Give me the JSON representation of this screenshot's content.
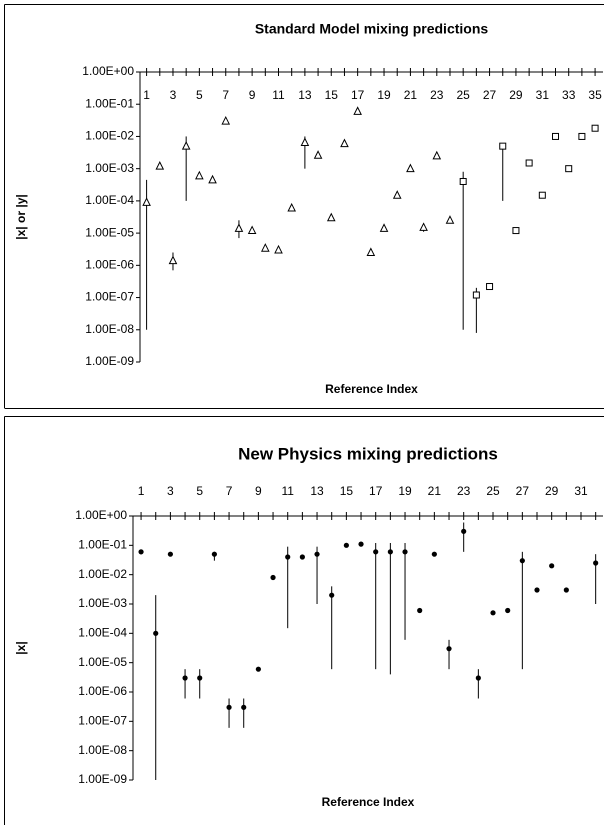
{
  "chart_data": [
    {
      "type": "scatter",
      "title": "Standard Model mixing predictions",
      "x_label": "Reference Index",
      "y_label": "|x| or |y|",
      "log_y": true,
      "xaxis_position": "top",
      "xtick_label_side": "below",
      "xlim": [
        0.5,
        35.6
      ],
      "xticks": [
        1,
        3,
        5,
        7,
        9,
        11,
        13,
        15,
        17,
        19,
        21,
        23,
        25,
        27,
        29,
        31,
        33,
        35
      ],
      "xminorticks": [
        2,
        4,
        6,
        8,
        10,
        12,
        14,
        16,
        18,
        20,
        22,
        24,
        26,
        28,
        30,
        32,
        34
      ],
      "ylim": [
        1e-09,
        1
      ],
      "yticks": [
        {
          "value": 1,
          "label": "1.00E+00"
        },
        {
          "value": 0.1,
          "label": "1.00E-01"
        },
        {
          "value": 0.01,
          "label": "1.00E-02"
        },
        {
          "value": 0.001,
          "label": "1.00E-03"
        },
        {
          "value": 0.0001,
          "label": "1.00E-04"
        },
        {
          "value": 1e-05,
          "label": "1.00E-05"
        },
        {
          "value": 1e-06,
          "label": "1.00E-06"
        },
        {
          "value": 1e-07,
          "label": "1.00E-07"
        },
        {
          "value": 1e-08,
          "label": "1.00E-08"
        },
        {
          "value": 1e-09,
          "label": "1.00E-09"
        }
      ],
      "series": [
        {
          "marker": "triangle",
          "color": "#000000",
          "x": [
            1,
            2,
            3,
            4,
            5,
            6,
            7,
            8,
            9,
            10,
            11,
            12,
            13,
            14,
            15,
            16,
            17,
            18,
            19,
            20,
            21,
            22,
            23,
            24
          ],
          "values": [
            9e-05,
            0.0012,
            1.4e-06,
            0.005,
            0.0006,
            0.00045,
            0.03,
            1.4e-05,
            1.2e-05,
            3.4e-06,
            3e-06,
            6e-05,
            0.0065,
            0.0026,
            3e-05,
            0.006,
            0.06,
            2.5e-06,
            1.4e-05,
            0.00015,
            0.001,
            1.5e-05,
            0.0025,
            2.5e-05
          ],
          "errors": [
            [
              1e-08,
              0.00045
            ],
            null,
            [
              7e-07,
              2.5e-06
            ],
            [
              0.0001,
              0.01
            ],
            null,
            null,
            null,
            [
              7e-06,
              2.5e-05
            ],
            null,
            null,
            null,
            null,
            [
              0.001,
              0.01
            ],
            null,
            null,
            null,
            null,
            null,
            null,
            null,
            null,
            [
              1.1e-05,
              2e-05
            ],
            null,
            null
          ]
        },
        {
          "marker": "square",
          "color": "#000000",
          "x": [
            25,
            26,
            27,
            28,
            29,
            30,
            31,
            32,
            33,
            34,
            35
          ],
          "values": [
            0.0004,
            1.2e-07,
            2.2e-07,
            0.005,
            1.2e-05,
            0.0015,
            0.00015,
            0.01,
            0.001,
            0.01,
            0.018
          ],
          "errors": [
            [
              1e-08,
              0.0008
            ],
            [
              8e-09,
              2e-07
            ],
            null,
            [
              0.0001,
              0.005
            ],
            null,
            null,
            null,
            null,
            null,
            null,
            null
          ]
        }
      ]
    },
    {
      "type": "scatter",
      "title": "New Physics mixing predictions",
      "x_label": "Reference Index",
      "y_label": "|x|",
      "log_y": true,
      "xaxis_position": "top",
      "xtick_label_side": "above",
      "xlim": [
        0.45,
        32.5
      ],
      "xticks": [
        1,
        3,
        5,
        7,
        9,
        11,
        13,
        15,
        17,
        19,
        21,
        23,
        25,
        27,
        29,
        31
      ],
      "xminorticks": [
        2,
        4,
        6,
        8,
        10,
        12,
        14,
        16,
        18,
        20,
        22,
        24,
        26,
        28,
        30,
        32
      ],
      "ylim": [
        1e-09,
        1
      ],
      "yticks": [
        {
          "value": 1,
          "label": "1.00E+00"
        },
        {
          "value": 0.1,
          "label": "1.00E-01"
        },
        {
          "value": 0.01,
          "label": "1.00E-02"
        },
        {
          "value": 0.001,
          "label": "1.00E-03"
        },
        {
          "value": 0.0001,
          "label": "1.00E-04"
        },
        {
          "value": 1e-05,
          "label": "1.00E-05"
        },
        {
          "value": 1e-06,
          "label": "1.00E-06"
        },
        {
          "value": 1e-07,
          "label": "1.00E-07"
        },
        {
          "value": 1e-08,
          "label": "1.00E-08"
        },
        {
          "value": 1e-09,
          "label": "1.00E-09"
        }
      ],
      "series": [
        {
          "marker": "circle",
          "color": "#000000",
          "x": [
            1,
            2,
            3,
            4,
            5,
            6,
            7,
            8,
            9,
            10,
            11,
            12,
            13,
            14,
            15,
            16,
            17,
            18,
            19,
            20,
            21,
            22,
            23,
            24,
            25,
            26,
            27,
            28,
            29,
            30,
            32
          ],
          "values": [
            0.06,
            0.0001,
            0.05,
            3e-06,
            3e-06,
            0.05,
            3e-07,
            3e-07,
            6e-06,
            0.008,
            0.04,
            0.04,
            0.05,
            0.002,
            0.1,
            0.11,
            0.06,
            0.06,
            0.06,
            0.0006,
            0.05,
            3e-05,
            0.3,
            3e-06,
            0.0005,
            0.0006,
            0.03,
            0.003,
            0.02,
            0.003,
            0.025
          ],
          "errors": [
            null,
            [
              1e-09,
              0.002
            ],
            null,
            [
              6e-07,
              6e-06
            ],
            [
              6e-07,
              6e-06
            ],
            [
              0.03,
              0.06
            ],
            [
              6e-08,
              6e-07
            ],
            [
              6e-08,
              6e-07
            ],
            null,
            null,
            [
              0.00015,
              0.09
            ],
            null,
            [
              0.001,
              0.09
            ],
            [
              6e-06,
              0.004
            ],
            null,
            null,
            [
              6e-06,
              0.12
            ],
            [
              4e-06,
              0.12
            ],
            [
              6e-05,
              0.12
            ],
            null,
            null,
            [
              6e-06,
              6e-05
            ],
            [
              0.06,
              0.6
            ],
            [
              6e-07,
              6e-06
            ],
            null,
            null,
            [
              6e-06,
              0.06
            ],
            null,
            null,
            null,
            [
              0.001,
              0.05
            ]
          ]
        }
      ]
    }
  ]
}
